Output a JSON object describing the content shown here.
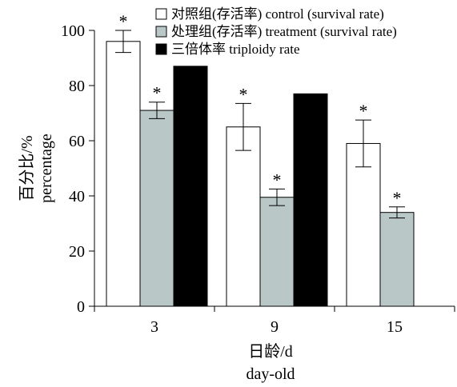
{
  "chart_data": {
    "type": "bar",
    "categories": [
      "3",
      "9",
      "15"
    ],
    "xlabel_lines": [
      "日龄/d",
      "day-old"
    ],
    "ylabel_lines": [
      "百分比/%",
      "percentage"
    ],
    "ylim": [
      0,
      100
    ],
    "yticks": [
      0,
      20,
      40,
      60,
      80,
      100
    ],
    "grid": false,
    "legend_position": "top-right",
    "series": [
      {
        "name": "对照组(存活率) control (survival rate)",
        "color": "#ffffff",
        "values": [
          96,
          65,
          59
        ],
        "errors": [
          4,
          8.5,
          8.5
        ],
        "significant": [
          true,
          true,
          true
        ]
      },
      {
        "name": "处理组(存活率) treatment (survival rate)",
        "color": "#b9c7c7",
        "values": [
          71,
          39.5,
          34
        ],
        "errors": [
          3,
          3,
          2
        ],
        "significant": [
          true,
          true,
          true
        ]
      },
      {
        "name": "三倍体率 triploidy rate",
        "color": "#000000",
        "values": [
          87,
          77,
          null
        ],
        "errors": [
          null,
          null,
          null
        ],
        "significant": [
          false,
          false,
          false
        ]
      }
    ],
    "annotation_symbol": "*"
  }
}
